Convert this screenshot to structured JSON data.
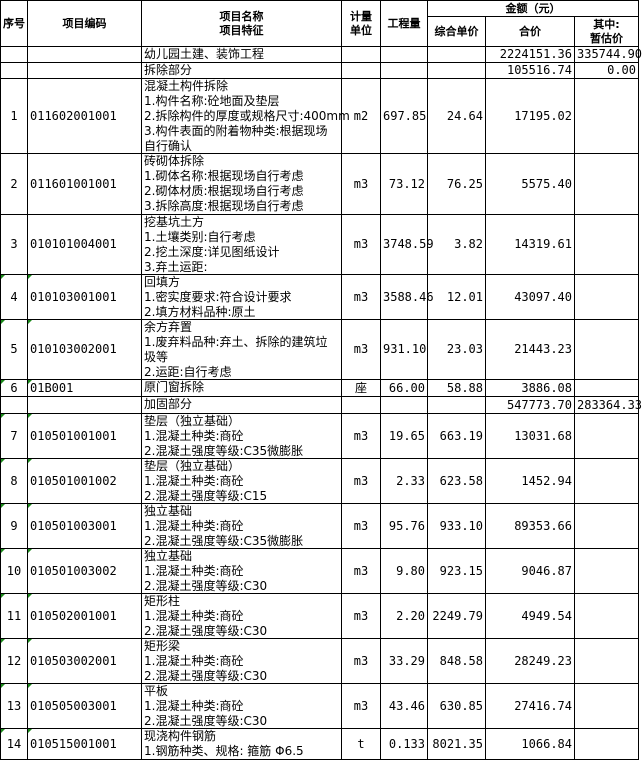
{
  "headers": {
    "seq": "序号",
    "code": "项目编码",
    "name": "项目名称\n项目特征",
    "unit": "计量\n单位",
    "qty": "工程量",
    "amount": "金额（元）",
    "unit_price": "综合单价",
    "total": "合价",
    "provisional": "其中:\n暂估价"
  },
  "colors": {
    "border": "#000000",
    "comment_marker": "#1a8a1a"
  },
  "rows": [
    {
      "seq": "",
      "code": "",
      "desc": "幼儿园土建、装饰工程",
      "unit": "",
      "qty": "",
      "price": "",
      "total": "2224151.36",
      "prov": "335744.90",
      "h": 16,
      "mark": false
    },
    {
      "seq": "",
      "code": "",
      "desc": "拆除部分",
      "unit": "",
      "qty": "",
      "price": "",
      "total": "105516.74",
      "prov": "0.00",
      "h": 16,
      "mark": false
    },
    {
      "seq": "1",
      "code": "011602001001",
      "desc": "混凝土构件拆除\n1.构件名称:砼地面及垫层\n2.拆除构件的厚度或规格尺寸:400mm\n3.构件表面的附着物种类:根据现场\n自行确认",
      "unit": "m2",
      "qty": "697.85",
      "price": "24.64",
      "total": "17195.02",
      "prov": "",
      "h": 75,
      "mark": false
    },
    {
      "seq": "2",
      "code": "011601001001",
      "desc": "砖砌体拆除\n1.砌体名称:根据现场自行考虑\n2.砌体材质:根据现场自行考虑\n3.拆除高度:根据现场自行考虑",
      "unit": "m3",
      "qty": "73.12",
      "price": "76.25",
      "total": "5575.40",
      "prov": "",
      "h": 61,
      "mark": false
    },
    {
      "seq": "3",
      "code": "010101004001",
      "desc": "挖基坑土方\n1.土壤类别:自行考虑\n2.挖土深度:详见图纸设计\n3.弃土运距:",
      "unit": "m3",
      "qty": "3748.59",
      "price": "3.82",
      "total": "14319.61",
      "prov": "",
      "h": 60,
      "mark": false
    },
    {
      "seq": "4",
      "code": "010103001001",
      "desc": "回填方\n1.密实度要求:符合设计要求\n2.填方材料品种:原土",
      "unit": "m3",
      "qty": "3588.46",
      "price": "12.01",
      "total": "43097.40",
      "prov": "",
      "h": 45,
      "mark": true
    },
    {
      "seq": "5",
      "code": "010103002001",
      "desc": "余方弃置\n1.废弃料品种:弃土、拆除的建筑垃\n圾等\n2.运距:自行考虑",
      "unit": "m3",
      "qty": "931.10",
      "price": "23.03",
      "total": "21443.23",
      "prov": "",
      "h": 60,
      "mark": true
    },
    {
      "seq": "6",
      "code": "01B001",
      "desc": "原门窗拆除",
      "unit": "座",
      "qty": "66.00",
      "price": "58.88",
      "total": "3886.08",
      "prov": "",
      "h": 17,
      "mark": true
    },
    {
      "seq": "",
      "code": "",
      "desc": "加固部分",
      "unit": "",
      "qty": "",
      "price": "",
      "total": "547773.70",
      "prov": "283364.33",
      "h": 17,
      "mark": false
    },
    {
      "seq": "7",
      "code": "010501001001",
      "desc": "垫层（独立基础）\n1.混凝土种类:商砼\n2.混凝土强度等级:C35微膨胀",
      "unit": "m3",
      "qty": "19.65",
      "price": "663.19",
      "total": "13031.68",
      "prov": "",
      "h": 45,
      "mark": true
    },
    {
      "seq": "8",
      "code": "010501001002",
      "desc": "垫层（独立基础）\n1.混凝土种类:商砼\n2.混凝土强度等级:C15",
      "unit": "m3",
      "qty": "2.33",
      "price": "623.58",
      "total": "1452.94",
      "prov": "",
      "h": 45,
      "mark": true
    },
    {
      "seq": "9",
      "code": "010501003001",
      "desc": "独立基础\n1.混凝土种类:商砼\n2.混凝土强度等级:C35微膨胀",
      "unit": "m3",
      "qty": "95.76",
      "price": "933.10",
      "total": "89353.66",
      "prov": "",
      "h": 45,
      "mark": true
    },
    {
      "seq": "10",
      "code": "010501003002",
      "desc": "独立基础\n1.混凝土种类:商砼\n2.混凝土强度等级:C30",
      "unit": "m3",
      "qty": "9.80",
      "price": "923.15",
      "total": "9046.87",
      "prov": "",
      "h": 45,
      "mark": true
    },
    {
      "seq": "11",
      "code": "010502001001",
      "desc": "矩形柱\n1.混凝土种类:商砼\n2.混凝土强度等级:C30",
      "unit": "m3",
      "qty": "2.20",
      "price": "2249.79",
      "total": "4949.54",
      "prov": "",
      "h": 45,
      "mark": true
    },
    {
      "seq": "12",
      "code": "010503002001",
      "desc": "矩形梁\n1.混凝土种类:商砼\n2.混凝土强度等级:C30",
      "unit": "m3",
      "qty": "33.29",
      "price": "848.58",
      "total": "28249.23",
      "prov": "",
      "h": 45,
      "mark": true
    },
    {
      "seq": "13",
      "code": "010505003001",
      "desc": "平板\n1.混凝土种类:商砼\n2.混凝土强度等级:C30",
      "unit": "m3",
      "qty": "43.46",
      "price": "630.85",
      "total": "27416.74",
      "prov": "",
      "h": 45,
      "mark": true
    },
    {
      "seq": "14",
      "code": "010515001001",
      "desc": "现浇构件钢筋\n1.钢筋种类、规格: 箍筋 Φ6.5",
      "unit": "t",
      "qty": "0.133",
      "price": "8021.35",
      "total": "1066.84",
      "prov": "",
      "h": 31,
      "mark": true
    }
  ]
}
